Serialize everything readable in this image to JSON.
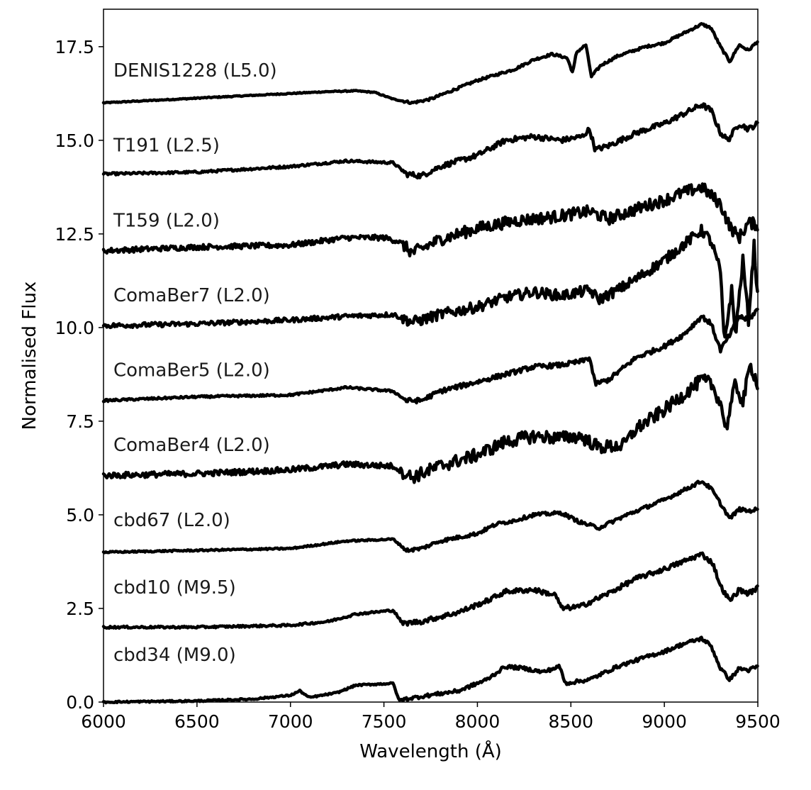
{
  "chart_data": {
    "type": "line",
    "title": "",
    "xlabel": "Wavelength (Å)",
    "ylabel": "Normalised Flux",
    "xlim": [
      6000,
      9500
    ],
    "ylim": [
      0.0,
      18.5
    ],
    "xticks": [
      6000,
      6500,
      7000,
      7500,
      8000,
      8500,
      9000,
      9500
    ],
    "xtick_labels": [
      "6000",
      "6500",
      "7000",
      "7500",
      "8000",
      "8500",
      "9000",
      "9500"
    ],
    "yticks": [
      0.0,
      2.5,
      5.0,
      7.5,
      10.0,
      12.5,
      15.0,
      17.5
    ],
    "ytick_labels": [
      "0.0",
      "2.5",
      "5.0",
      "7.5",
      "10.0",
      "12.5",
      "15.0",
      "17.5"
    ],
    "grid": false,
    "line_color": "#000000",
    "series": [
      {
        "name": "DENIS1228 (L5.0)",
        "label_y": 16.7,
        "points": [
          [
            6000,
            16.0
          ],
          [
            6200,
            16.05
          ],
          [
            6400,
            16.1
          ],
          [
            6600,
            16.15
          ],
          [
            6800,
            16.2
          ],
          [
            7000,
            16.25
          ],
          [
            7200,
            16.3
          ],
          [
            7350,
            16.32
          ],
          [
            7450,
            16.28
          ],
          [
            7550,
            16.1
          ],
          [
            7650,
            16.0
          ],
          [
            7750,
            16.1
          ],
          [
            7900,
            16.4
          ],
          [
            8000,
            16.6
          ],
          [
            8100,
            16.75
          ],
          [
            8200,
            16.9
          ],
          [
            8300,
            17.15
          ],
          [
            8400,
            17.3
          ],
          [
            8480,
            17.2
          ],
          [
            8510,
            16.8
          ],
          [
            8530,
            17.35
          ],
          [
            8580,
            17.55
          ],
          [
            8610,
            16.7
          ],
          [
            8660,
            17.0
          ],
          [
            8750,
            17.25
          ],
          [
            8900,
            17.5
          ],
          [
            9000,
            17.6
          ],
          [
            9100,
            17.85
          ],
          [
            9200,
            18.1
          ],
          [
            9250,
            18.0
          ],
          [
            9300,
            17.5
          ],
          [
            9350,
            17.1
          ],
          [
            9400,
            17.55
          ],
          [
            9450,
            17.4
          ],
          [
            9500,
            17.65
          ]
        ],
        "noise": 0.04
      },
      {
        "name": "T191 (L2.5)",
        "label_y": 14.7,
        "points": [
          [
            6000,
            14.1
          ],
          [
            6500,
            14.15
          ],
          [
            7000,
            14.3
          ],
          [
            7300,
            14.45
          ],
          [
            7550,
            14.4
          ],
          [
            7620,
            14.1
          ],
          [
            7700,
            14.05
          ],
          [
            7800,
            14.3
          ],
          [
            8000,
            14.6
          ],
          [
            8150,
            15.0
          ],
          [
            8300,
            15.1
          ],
          [
            8450,
            15.0
          ],
          [
            8560,
            15.1
          ],
          [
            8600,
            15.3
          ],
          [
            8630,
            14.75
          ],
          [
            8700,
            14.85
          ],
          [
            8850,
            15.2
          ],
          [
            9000,
            15.45
          ],
          [
            9100,
            15.7
          ],
          [
            9200,
            15.95
          ],
          [
            9250,
            15.8
          ],
          [
            9300,
            15.2
          ],
          [
            9340,
            15.0
          ],
          [
            9400,
            15.45
          ],
          [
            9450,
            15.3
          ],
          [
            9500,
            15.45
          ]
        ],
        "noise": 0.09
      },
      {
        "name": "T159 (L2.0)",
        "label_y": 12.7,
        "points": [
          [
            6000,
            12.05
          ],
          [
            6500,
            12.15
          ],
          [
            7000,
            12.2
          ],
          [
            7300,
            12.4
          ],
          [
            7500,
            12.4
          ],
          [
            7580,
            12.3
          ],
          [
            7650,
            12.0
          ],
          [
            7700,
            12.1
          ],
          [
            7800,
            12.35
          ],
          [
            8000,
            12.65
          ],
          [
            8200,
            12.85
          ],
          [
            8400,
            12.95
          ],
          [
            8600,
            13.1
          ],
          [
            8700,
            12.9
          ],
          [
            8900,
            13.25
          ],
          [
            9000,
            13.4
          ],
          [
            9100,
            13.6
          ],
          [
            9200,
            13.75
          ],
          [
            9300,
            13.3
          ],
          [
            9350,
            12.7
          ],
          [
            9400,
            12.4
          ],
          [
            9450,
            12.8
          ],
          [
            9500,
            12.75
          ]
        ],
        "noise": 0.2
      },
      {
        "name": "ComaBer7 (L2.0)",
        "label_y": 10.7,
        "points": [
          [
            6000,
            10.05
          ],
          [
            6500,
            10.1
          ],
          [
            7000,
            10.2
          ],
          [
            7300,
            10.3
          ],
          [
            7550,
            10.35
          ],
          [
            7650,
            10.15
          ],
          [
            7700,
            10.2
          ],
          [
            7800,
            10.35
          ],
          [
            8000,
            10.55
          ],
          [
            8150,
            10.8
          ],
          [
            8300,
            10.95
          ],
          [
            8450,
            10.85
          ],
          [
            8600,
            11.0
          ],
          [
            8650,
            10.75
          ],
          [
            8750,
            11.0
          ],
          [
            8850,
            11.3
          ],
          [
            9000,
            11.8
          ],
          [
            9100,
            12.2
          ],
          [
            9200,
            12.6
          ],
          [
            9250,
            12.3
          ],
          [
            9300,
            11.5
          ],
          [
            9320,
            9.6
          ],
          [
            9360,
            11.0
          ],
          [
            9380,
            9.8
          ],
          [
            9420,
            11.8
          ],
          [
            9450,
            10.2
          ],
          [
            9480,
            12.2
          ],
          [
            9500,
            10.7
          ]
        ],
        "noise": 0.18
      },
      {
        "name": "ComaBer5 (L2.0)",
        "label_y": 8.7,
        "points": [
          [
            6000,
            8.05
          ],
          [
            6500,
            8.15
          ],
          [
            7000,
            8.2
          ],
          [
            7300,
            8.4
          ],
          [
            7550,
            8.3
          ],
          [
            7620,
            8.05
          ],
          [
            7700,
            8.05
          ],
          [
            7800,
            8.3
          ],
          [
            8000,
            8.55
          ],
          [
            8150,
            8.75
          ],
          [
            8300,
            8.95
          ],
          [
            8450,
            9.0
          ],
          [
            8560,
            9.1
          ],
          [
            8600,
            9.2
          ],
          [
            8630,
            8.5
          ],
          [
            8700,
            8.6
          ],
          [
            8850,
            9.2
          ],
          [
            9000,
            9.5
          ],
          [
            9100,
            9.8
          ],
          [
            9200,
            10.3
          ],
          [
            9250,
            10.1
          ],
          [
            9300,
            9.4
          ],
          [
            9350,
            9.8
          ],
          [
            9400,
            10.3
          ],
          [
            9450,
            10.2
          ],
          [
            9500,
            10.5
          ]
        ],
        "noise": 0.08
      },
      {
        "name": "ComaBer4 (L2.0)",
        "label_y": 6.7,
        "points": [
          [
            6000,
            6.05
          ],
          [
            6500,
            6.1
          ],
          [
            7000,
            6.2
          ],
          [
            7300,
            6.35
          ],
          [
            7550,
            6.3
          ],
          [
            7650,
            6.0
          ],
          [
            7700,
            6.1
          ],
          [
            7800,
            6.3
          ],
          [
            8000,
            6.6
          ],
          [
            8150,
            6.95
          ],
          [
            8300,
            7.1
          ],
          [
            8450,
            7.05
          ],
          [
            8550,
            7.1
          ],
          [
            8650,
            6.8
          ],
          [
            8780,
            6.85
          ],
          [
            8850,
            7.3
          ],
          [
            9000,
            7.8
          ],
          [
            9100,
            8.2
          ],
          [
            9200,
            8.6
          ],
          [
            9250,
            8.5
          ],
          [
            9300,
            8.0
          ],
          [
            9330,
            7.3
          ],
          [
            9380,
            8.5
          ],
          [
            9420,
            8.0
          ],
          [
            9460,
            9.0
          ],
          [
            9500,
            8.5
          ]
        ],
        "noise": 0.22
      },
      {
        "name": "cbd67 (L2.0)",
        "label_y": 4.7,
        "points": [
          [
            6000,
            4.0
          ],
          [
            6500,
            4.05
          ],
          [
            7000,
            4.1
          ],
          [
            7300,
            4.3
          ],
          [
            7550,
            4.35
          ],
          [
            7620,
            4.05
          ],
          [
            7700,
            4.1
          ],
          [
            7800,
            4.3
          ],
          [
            8000,
            4.5
          ],
          [
            8100,
            4.75
          ],
          [
            8200,
            4.85
          ],
          [
            8300,
            5.0
          ],
          [
            8450,
            5.05
          ],
          [
            8550,
            4.8
          ],
          [
            8650,
            4.65
          ],
          [
            8800,
            5.0
          ],
          [
            9000,
            5.4
          ],
          [
            9100,
            5.65
          ],
          [
            9200,
            5.9
          ],
          [
            9250,
            5.7
          ],
          [
            9300,
            5.3
          ],
          [
            9350,
            4.9
          ],
          [
            9400,
            5.15
          ],
          [
            9450,
            5.1
          ],
          [
            9500,
            5.15
          ]
        ],
        "noise": 0.06
      },
      {
        "name": "cbd10 (M9.5)",
        "label_y": 2.9,
        "points": [
          [
            6000,
            2.0
          ],
          [
            6500,
            2.0
          ],
          [
            7000,
            2.05
          ],
          [
            7200,
            2.15
          ],
          [
            7350,
            2.35
          ],
          [
            7550,
            2.45
          ],
          [
            7600,
            2.1
          ],
          [
            7700,
            2.15
          ],
          [
            7900,
            2.4
          ],
          [
            8050,
            2.7
          ],
          [
            8150,
            2.95
          ],
          [
            8300,
            3.0
          ],
          [
            8420,
            2.85
          ],
          [
            8450,
            2.5
          ],
          [
            8550,
            2.55
          ],
          [
            8700,
            2.9
          ],
          [
            8850,
            3.3
          ],
          [
            9000,
            3.55
          ],
          [
            9100,
            3.75
          ],
          [
            9200,
            3.95
          ],
          [
            9260,
            3.7
          ],
          [
            9300,
            3.1
          ],
          [
            9350,
            2.7
          ],
          [
            9400,
            3.0
          ],
          [
            9450,
            2.9
          ],
          [
            9500,
            3.05
          ]
        ],
        "noise": 0.08
      },
      {
        "name": "cbd34 (M9.0)",
        "label_y": 1.1,
        "points": [
          [
            6000,
            0.0
          ],
          [
            6500,
            0.03
          ],
          [
            6800,
            0.08
          ],
          [
            7000,
            0.18
          ],
          [
            7050,
            0.3
          ],
          [
            7100,
            0.12
          ],
          [
            7250,
            0.25
          ],
          [
            7350,
            0.45
          ],
          [
            7550,
            0.5
          ],
          [
            7580,
            0.05
          ],
          [
            7700,
            0.15
          ],
          [
            7900,
            0.3
          ],
          [
            8050,
            0.6
          ],
          [
            8150,
            0.95
          ],
          [
            8250,
            0.9
          ],
          [
            8350,
            0.8
          ],
          [
            8440,
            0.95
          ],
          [
            8470,
            0.5
          ],
          [
            8600,
            0.6
          ],
          [
            8750,
            0.95
          ],
          [
            8900,
            1.2
          ],
          [
            9000,
            1.35
          ],
          [
            9100,
            1.55
          ],
          [
            9200,
            1.7
          ],
          [
            9250,
            1.5
          ],
          [
            9300,
            0.9
          ],
          [
            9350,
            0.6
          ],
          [
            9400,
            0.9
          ],
          [
            9450,
            0.85
          ],
          [
            9500,
            0.95
          ]
        ],
        "noise": 0.06
      }
    ]
  }
}
